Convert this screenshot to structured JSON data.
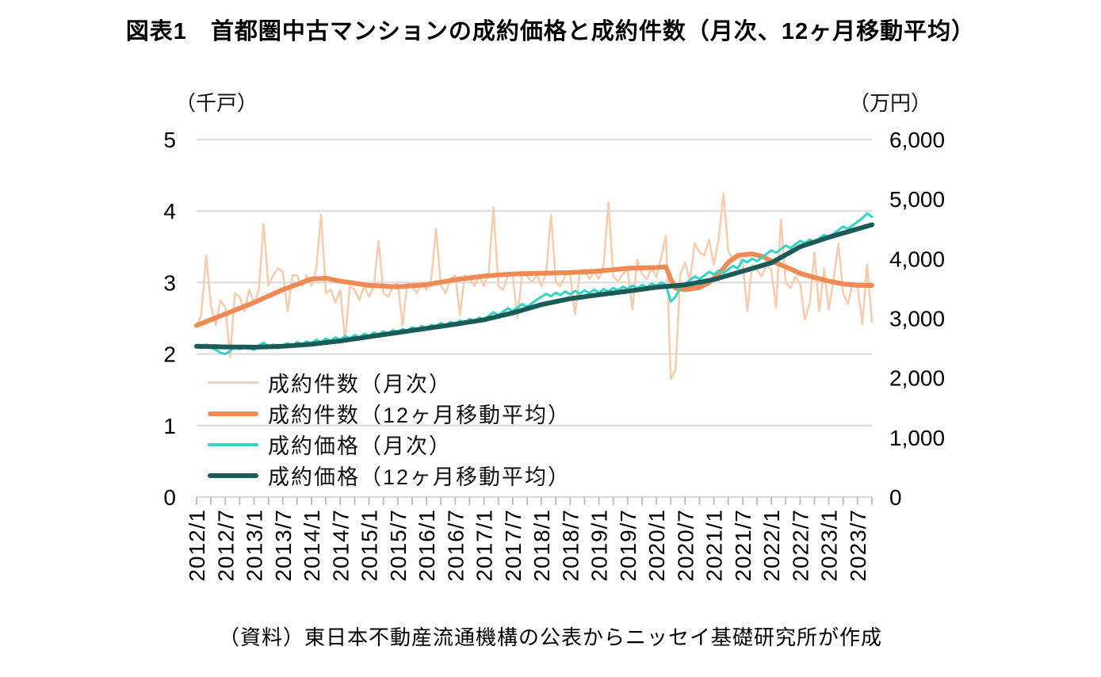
{
  "title": "図表1　首都圏中古マンションの成約価格と成約件数（月次、12ヶ月移動平均）",
  "source": "（資料）東日本不動産流通機構の公表からニッセイ基礎研究所が作成",
  "left_axis": {
    "unit": "（千戸）",
    "tick_labels": [
      "5",
      "4",
      "3",
      "2",
      "1",
      "0"
    ],
    "tick_values": [
      5,
      4,
      3,
      2,
      1,
      0
    ],
    "min": 0,
    "max": 5
  },
  "right_axis": {
    "unit": "（万円）",
    "tick_labels": [
      "6,000",
      "5,000",
      "4,000",
      "3,000",
      "2,000",
      "1,000",
      "0"
    ],
    "tick_values": [
      6000,
      5000,
      4000,
      3000,
      2000,
      1000,
      0
    ],
    "min": 0,
    "max": 6000
  },
  "x_axis": {
    "labels": [
      "2012/1",
      "2012/7",
      "2013/1",
      "2013/7",
      "2014/1",
      "2014/7",
      "2015/1",
      "2015/7",
      "2016/1",
      "2016/7",
      "2017/1",
      "2017/7",
      "2018/1",
      "2018/7",
      "2019/1",
      "2019/7",
      "2020/1",
      "2020/7",
      "2021/1",
      "2021/7",
      "2022/1",
      "2022/7",
      "2023/1",
      "2023/7"
    ],
    "label_every_months": 6,
    "minor_tick_every_months": 3,
    "months_total": 142
  },
  "legend": [
    {
      "label": "成約件数（月次）",
      "color": "#F8CBAD",
      "thickness": 3
    },
    {
      "label": "成約件数（12ヶ月移動平均）",
      "color": "#F08A55",
      "thickness": 6
    },
    {
      "label": "成約価格（月次）",
      "color": "#2FD6C7",
      "thickness": 4
    },
    {
      "label": "成約価格（12ヶ月移動平均）",
      "color": "#1A5B58",
      "thickness": 6
    }
  ],
  "colors": {
    "grid": "#D9D9D9",
    "axis": "#D9D9D9",
    "tick": "#BFBFBF",
    "text": "#000000"
  },
  "chart_data": {
    "type": "line",
    "title": "図表1　首都圏中古マンションの成約価格と成約件数（月次、12ヶ月移動平均）",
    "x_start": "2012/1",
    "x_end": "2023/10",
    "x_unit": "month",
    "left_ylim": [
      0,
      5
    ],
    "right_ylim": [
      0,
      6000
    ],
    "grid": "horizontal-only",
    "legend_position": "inside-lower-left",
    "series": [
      {
        "key": "contracts-monthly",
        "name": "成約件数（月次）",
        "axis": "left",
        "unit": "千戸",
        "color": "#F8CBAD",
        "width": 2.5,
        "values": [
          2.4,
          2.55,
          3.38,
          2.68,
          2.4,
          2.75,
          2.65,
          1.95,
          2.85,
          2.8,
          2.6,
          2.9,
          2.7,
          2.9,
          3.82,
          2.95,
          3.1,
          3.2,
          3.15,
          2.6,
          3.1,
          3.1,
          2.95,
          3.1,
          2.95,
          3.2,
          3.95,
          2.85,
          2.9,
          2.72,
          2.9,
          2.18,
          2.95,
          2.9,
          2.75,
          2.95,
          2.8,
          2.95,
          3.58,
          2.85,
          2.8,
          2.95,
          3.0,
          2.4,
          3.0,
          2.95,
          2.85,
          3.0,
          2.9,
          3.05,
          3.75,
          2.95,
          2.85,
          3.05,
          3.1,
          2.55,
          3.1,
          3.05,
          2.95,
          3.1,
          2.95,
          3.15,
          4.05,
          2.95,
          2.9,
          3.1,
          3.1,
          2.5,
          3.15,
          3.1,
          3.0,
          3.12,
          2.95,
          3.15,
          3.95,
          3.0,
          2.95,
          3.1,
          3.12,
          2.55,
          3.15,
          3.18,
          3.05,
          3.15,
          3.05,
          3.25,
          4.12,
          3.08,
          3.02,
          3.12,
          3.18,
          2.62,
          3.32,
          3.12,
          3.05,
          3.2,
          3.08,
          3.35,
          3.65,
          1.65,
          1.78,
          3.12,
          3.28,
          3.02,
          3.55,
          3.42,
          3.38,
          3.6,
          3.25,
          3.6,
          4.25,
          3.45,
          3.3,
          3.35,
          3.28,
          2.6,
          3.25,
          3.18,
          3.08,
          3.25,
          3.18,
          2.65,
          3.88,
          3.0,
          2.92,
          3.08,
          2.98,
          2.48,
          2.7,
          3.42,
          2.6,
          3.2,
          2.62,
          3.05,
          3.55,
          2.85,
          2.7,
          3.0,
          2.95,
          2.42,
          3.25,
          2.45
        ]
      },
      {
        "key": "contracts-ma",
        "name": "成約件数（12ヶ月移動平均）",
        "axis": "left",
        "unit": "千戸",
        "color": "#F08A55",
        "width": 6,
        "anchors_x": [
          0,
          6,
          12,
          18,
          24,
          27,
          30,
          36,
          42,
          48,
          54,
          60,
          66,
          72,
          78,
          84,
          90,
          96,
          98,
          99,
          100,
          102,
          105,
          107,
          109,
          111,
          113,
          116,
          118,
          120,
          123,
          126,
          129,
          132,
          135,
          138,
          141
        ],
        "anchors_y": [
          2.4,
          2.56,
          2.72,
          2.9,
          3.05,
          3.06,
          3.02,
          2.96,
          2.94,
          2.97,
          3.04,
          3.09,
          3.12,
          3.13,
          3.14,
          3.16,
          3.2,
          3.21,
          3.22,
          3.05,
          2.92,
          2.9,
          2.93,
          3.0,
          3.12,
          3.28,
          3.38,
          3.4,
          3.37,
          3.3,
          3.22,
          3.13,
          3.07,
          3.02,
          2.98,
          2.96,
          2.96
        ]
      },
      {
        "key": "price-monthly",
        "name": "成約価格（月次）",
        "axis": "right",
        "unit": "万円",
        "color": "#2FD6C7",
        "width": 3,
        "values": [
          2550,
          2500,
          2560,
          2510,
          2470,
          2420,
          2400,
          2450,
          2530,
          2480,
          2540,
          2500,
          2470,
          2540,
          2590,
          2530,
          2560,
          2500,
          2550,
          2580,
          2540,
          2600,
          2560,
          2610,
          2580,
          2640,
          2600,
          2660,
          2620,
          2680,
          2640,
          2700,
          2660,
          2720,
          2680,
          2740,
          2700,
          2760,
          2720,
          2780,
          2740,
          2800,
          2760,
          2820,
          2790,
          2850,
          2810,
          2870,
          2830,
          2890,
          2860,
          2920,
          2880,
          2940,
          2900,
          2960,
          2930,
          2990,
          2950,
          3010,
          2980,
          3040,
          3100,
          3050,
          3110,
          3170,
          3120,
          3180,
          3240,
          3190,
          3250,
          3310,
          3360,
          3410,
          3370,
          3430,
          3390,
          3450,
          3400,
          3460,
          3410,
          3470,
          3420,
          3480,
          3430,
          3490,
          3450,
          3510,
          3470,
          3530,
          3490,
          3550,
          3500,
          3560,
          3520,
          3580,
          3540,
          3600,
          3560,
          3280,
          3360,
          3520,
          3580,
          3640,
          3700,
          3660,
          3720,
          3780,
          3740,
          3800,
          3760,
          3820,
          3880,
          3840,
          3980,
          3940,
          4000,
          3960,
          4020,
          4080,
          4140,
          4100,
          4160,
          4220,
          4180,
          4240,
          4300,
          4260,
          4320,
          4280,
          4340,
          4400,
          4360,
          4420,
          4480,
          4540,
          4500,
          4560,
          4620,
          4680,
          4760,
          4700
        ]
      },
      {
        "key": "price-ma",
        "name": "成約価格（12ヶ月移動平均）",
        "axis": "right",
        "unit": "万円",
        "color": "#1A5B58",
        "width": 6,
        "anchors_x": [
          0,
          6,
          12,
          18,
          24,
          30,
          36,
          42,
          48,
          54,
          60,
          66,
          72,
          78,
          84,
          90,
          96,
          102,
          108,
          114,
          120,
          126,
          132,
          138,
          141
        ],
        "anchors_y": [
          2530,
          2520,
          2515,
          2530,
          2565,
          2620,
          2690,
          2760,
          2830,
          2900,
          2975,
          3090,
          3230,
          3330,
          3395,
          3455,
          3520,
          3560,
          3650,
          3790,
          3930,
          4200,
          4360,
          4500,
          4570
        ]
      }
    ]
  }
}
